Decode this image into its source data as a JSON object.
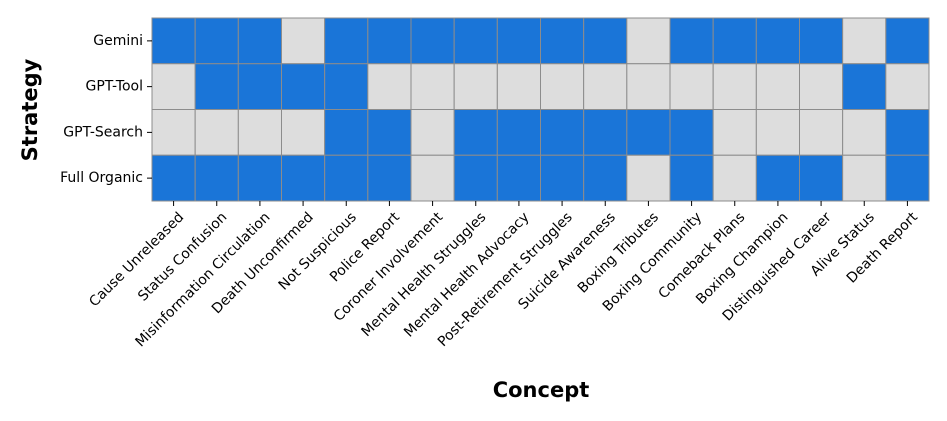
{
  "chart_data": {
    "type": "heatmap",
    "xlabel": "Concept",
    "ylabel": "Strategy",
    "x_categories": [
      "Cause Unreleased",
      "Status Confusion",
      "Misinformation Circulation",
      "Death Unconfirmed",
      "Not Suspicious",
      "Police Report",
      "Coroner Involvement",
      "Mental Health Struggles",
      "Mental Health Advocacy",
      "Post-Retirement Struggles",
      "Suicide Awareness",
      "Boxing Tributes",
      "Boxing Community",
      "Comeback Plans",
      "Boxing Champion",
      "Distinguished Career",
      "Alive Status",
      "Death Report"
    ],
    "y_categories": [
      "Gemini",
      "GPT-Tool",
      "GPT-Search",
      "Full Organic"
    ],
    "values": [
      [
        1,
        1,
        1,
        0,
        1,
        1,
        1,
        1,
        1,
        1,
        1,
        0,
        1,
        1,
        1,
        1,
        0,
        1
      ],
      [
        0,
        1,
        1,
        1,
        1,
        0,
        0,
        0,
        0,
        0,
        0,
        0,
        0,
        0,
        0,
        0,
        1,
        0
      ],
      [
        0,
        0,
        0,
        0,
        1,
        1,
        0,
        1,
        1,
        1,
        1,
        1,
        1,
        0,
        0,
        0,
        0,
        1
      ],
      [
        1,
        1,
        1,
        1,
        1,
        1,
        0,
        1,
        1,
        1,
        1,
        0,
        1,
        0,
        1,
        1,
        0,
        1
      ]
    ],
    "colors": {
      "present": "#1a75d8",
      "absent": "#dddddd"
    },
    "grid": true,
    "legend": "none"
  }
}
